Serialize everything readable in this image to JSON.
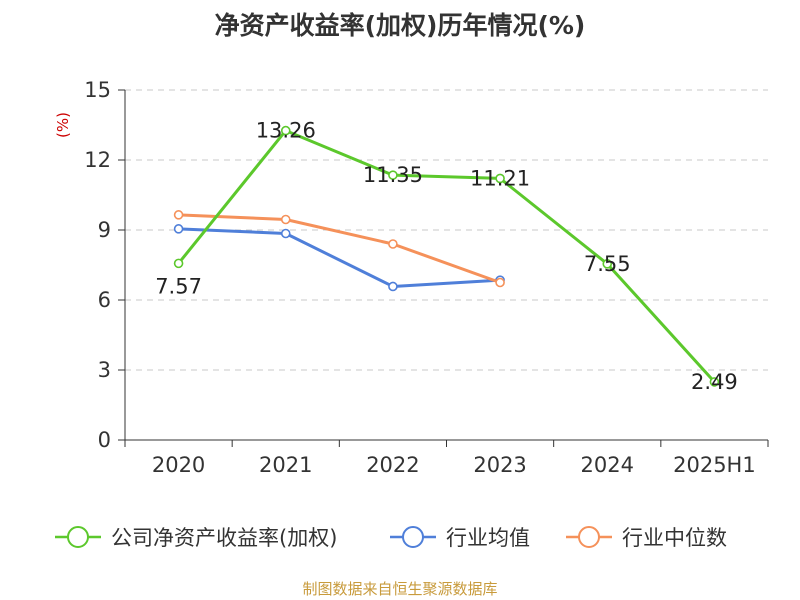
{
  "title": "净资产收益率(加权)历年情况(%)",
  "source": "制图数据来自恒生聚源数据库",
  "chart_data": {
    "type": "line",
    "title": "净资产收益率(加权)历年情况(%)",
    "ylabel": "(%)",
    "xlabel": "",
    "categories": [
      "2020",
      "2021",
      "2022",
      "2023",
      "2024",
      "2025H1"
    ],
    "ylim": [
      0,
      15
    ],
    "yticks": [
      0,
      3,
      6,
      9,
      12,
      15
    ],
    "grid": true,
    "legend_position": "bottom",
    "series": [
      {
        "name": "公司净资产收益率(加权)",
        "color": "#5cc82c",
        "values": [
          7.57,
          13.26,
          11.35,
          11.21,
          7.55,
          2.49
        ],
        "labels": [
          "7.57",
          "13.26",
          "11.35",
          "11.21",
          "7.55",
          "2.49"
        ]
      },
      {
        "name": "行业均值",
        "color": "#4f7fd9",
        "values": [
          9.05,
          8.85,
          6.58,
          6.85,
          null,
          null
        ]
      },
      {
        "name": "行业中位数",
        "color": "#f5915a",
        "values": [
          9.65,
          9.45,
          8.4,
          6.75,
          null,
          null
        ]
      }
    ]
  }
}
